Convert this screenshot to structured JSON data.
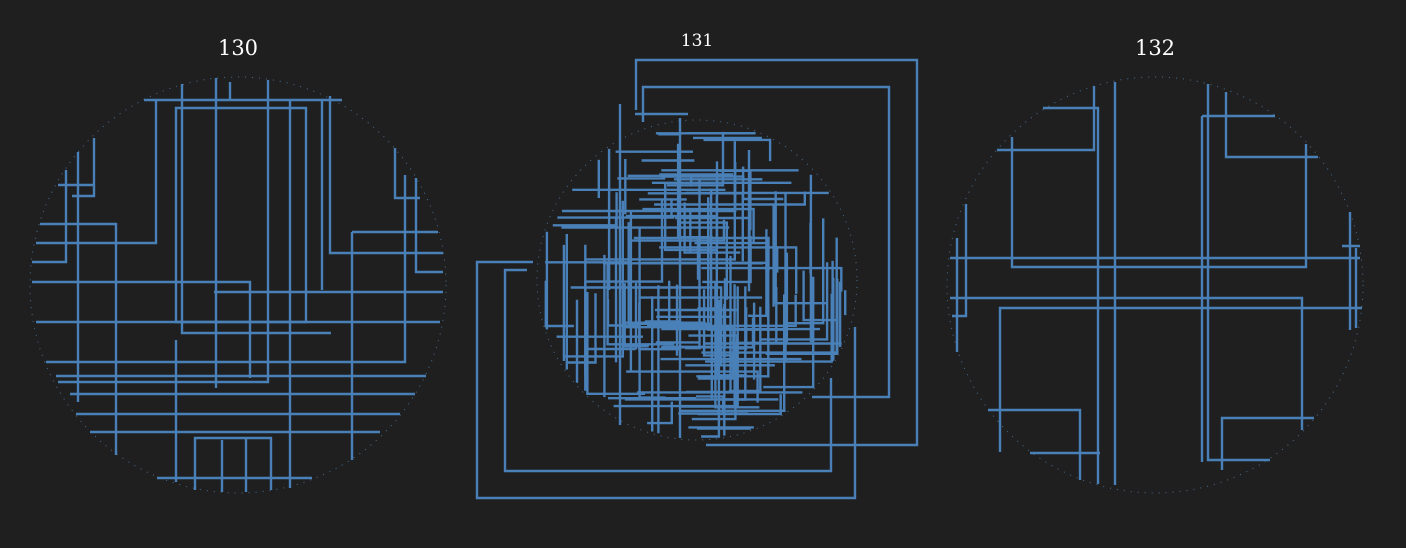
{
  "colors": {
    "background": "#1f1f1f",
    "line": "#4a80b8",
    "boundary": "#4a6f95",
    "title": "#ffffff"
  },
  "diagrams": [
    {
      "label": "130"
    },
    {
      "label": "131"
    },
    {
      "label": "132"
    }
  ]
}
